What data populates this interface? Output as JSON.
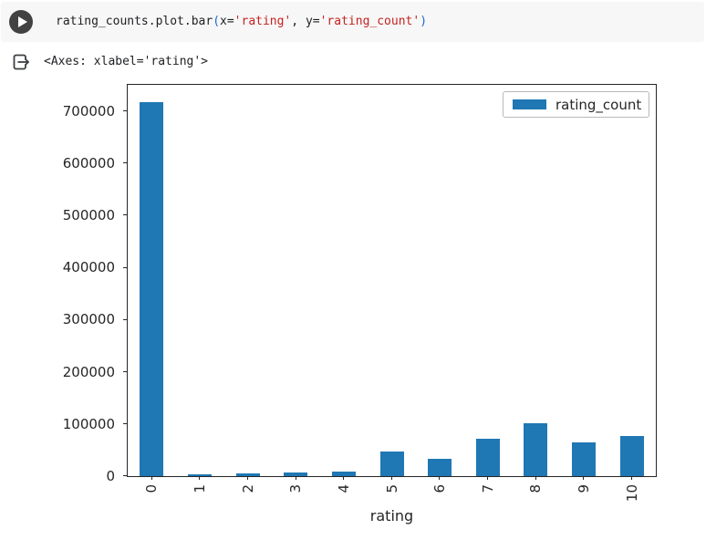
{
  "cell": {
    "code_tokens": [
      {
        "text": "rating_counts.plot.bar",
        "type": "plain"
      },
      {
        "text": "(",
        "type": "bracket"
      },
      {
        "text": "x=",
        "type": "plain"
      },
      {
        "text": "'rating'",
        "type": "string"
      },
      {
        "text": ", y=",
        "type": "plain"
      },
      {
        "text": "'rating_count'",
        "type": "string"
      },
      {
        "text": ")",
        "type": "bracket"
      }
    ]
  },
  "output": {
    "repr_text": "<Axes: xlabel='rating'>"
  },
  "chart_data": {
    "type": "bar",
    "title": "",
    "xlabel": "rating",
    "ylabel": "",
    "categories": [
      "0",
      "1",
      "2",
      "3",
      "4",
      "5",
      "6",
      "7",
      "8",
      "9",
      "10"
    ],
    "values": [
      717000,
      3500,
      4500,
      7500,
      9300,
      46500,
      34000,
      71500,
      101000,
      65000,
      77000
    ],
    "series_name": "rating_count",
    "legend": {
      "label": "rating_count",
      "position": "upper right"
    },
    "ylim": [
      0,
      750000
    ],
    "yticks": [
      0,
      100000,
      200000,
      300000,
      400000,
      500000,
      600000,
      700000
    ],
    "x_tick_rotation": 90,
    "grid": false,
    "bar_width_ratio": 0.5
  },
  "colors": {
    "bar": "#1f77b4",
    "cell_bg": "#f7f7f7",
    "run_button": "#424242",
    "code_plain": "#202124",
    "code_string": "#c5221f",
    "code_bracket": "#1967d2",
    "axis": "#262626"
  }
}
